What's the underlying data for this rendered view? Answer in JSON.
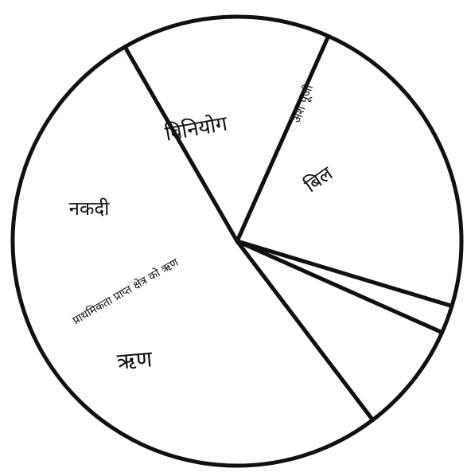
{
  "chart_data": {
    "type": "pie",
    "title": "",
    "categories": [
      "विनियोग",
      "अंश पूंजी",
      "बिल",
      "प्राथमिकता प्राप्त क्षेत्र को ऋण ऋण",
      "नकदी"
    ],
    "values": [
      23,
      2,
      8,
      52,
      15
    ],
    "start_angle_deg": -66,
    "direction": "clockwise",
    "fill_color": "#ffffff",
    "stroke_color": "#111111",
    "legend": "none",
    "labels": [
      {
        "text": "विनियोग",
        "slice": 0
      },
      {
        "text": "अंश पूंजी",
        "slice": 1
      },
      {
        "text": "बिल",
        "slice": 2
      },
      {
        "text": "प्राथमिकता प्राप्त क्षेत्र को ऋण",
        "slice": 3
      },
      {
        "text": "ऋण",
        "slice": 3
      },
      {
        "text": "नकदी",
        "slice": 4
      }
    ]
  }
}
